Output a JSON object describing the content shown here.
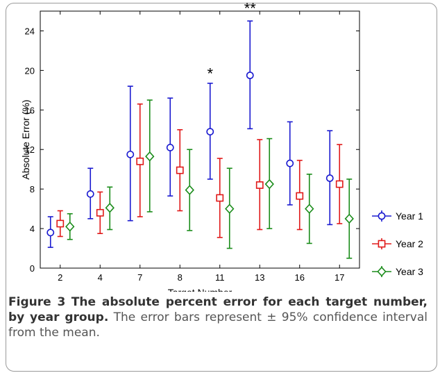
{
  "chart_data": {
    "type": "scatter",
    "xlabel": "Target Number",
    "ylabel": "Absolute Error (%)",
    "categories": [
      "2",
      "4",
      "7",
      "8",
      "11",
      "13",
      "16",
      "17"
    ],
    "ylim": [
      0,
      26
    ],
    "yticks": [
      0,
      4,
      8,
      12,
      16,
      20,
      24
    ],
    "grid": false,
    "legend_position": "right",
    "series": [
      {
        "name": "Year 1",
        "marker": "circle",
        "color": "#1a1ad0",
        "mean": [
          3.6,
          7.5,
          11.5,
          12.2,
          13.8,
          19.5,
          10.6,
          9.1
        ],
        "lower": [
          2.1,
          5.0,
          4.8,
          7.3,
          9.0,
          14.1,
          6.4,
          4.4
        ],
        "upper": [
          5.2,
          10.1,
          18.4,
          17.2,
          18.7,
          25.0,
          14.8,
          13.9
        ]
      },
      {
        "name": "Year 2",
        "marker": "square",
        "color": "#e01818",
        "mean": [
          4.5,
          5.6,
          10.8,
          9.9,
          7.1,
          8.4,
          7.3,
          8.5
        ],
        "lower": [
          3.2,
          3.5,
          5.2,
          5.8,
          3.1,
          3.9,
          3.9,
          4.5
        ],
        "upper": [
          5.8,
          7.7,
          16.6,
          14.0,
          11.1,
          13.0,
          10.9,
          12.5
        ]
      },
      {
        "name": "Year 3",
        "marker": "diamond",
        "color": "#1a8c1a",
        "mean": [
          4.2,
          6.1,
          11.3,
          7.9,
          6.0,
          8.5,
          6.0,
          5.0
        ],
        "lower": [
          2.9,
          3.9,
          5.7,
          3.8,
          2.0,
          4.0,
          2.5,
          1.0
        ],
        "upper": [
          5.5,
          8.2,
          17.0,
          12.0,
          10.1,
          13.1,
          9.5,
          9.0
        ]
      }
    ],
    "annotations": [
      {
        "category": "11",
        "text": "*",
        "y": 19.7
      },
      {
        "category": "13",
        "text": "**",
        "y": 26.3
      }
    ]
  },
  "caption": {
    "label": "Figure 3",
    "title": "The absolute percent error for each target number, by year group.",
    "text": "The error bars represent ± 95% confidence interval from the mean."
  }
}
